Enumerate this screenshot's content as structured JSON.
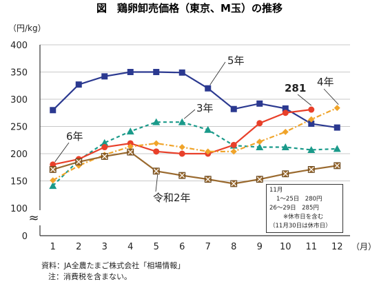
{
  "chart_data": {
    "type": "line",
    "title": "図　鶏卵卸売価格（東京、M玉）の推移",
    "ylabel": "（円/kg）",
    "xlabel": "（月）",
    "categories": [
      "1",
      "2",
      "3",
      "4",
      "5",
      "6",
      "7",
      "8",
      "9",
      "10",
      "11",
      "12"
    ],
    "ylim": [
      0,
      400
    ],
    "y_ticks": [
      "0",
      "100",
      "150",
      "200",
      "250",
      "300",
      "350",
      "400"
    ],
    "axis_break": "≈",
    "grid": true,
    "series": [
      {
        "name": "5年",
        "color": "#2b3990",
        "dash": "",
        "marker": "square",
        "values": [
          280,
          327,
          342,
          350,
          350,
          349,
          320,
          282,
          292,
          283,
          255,
          248
        ]
      },
      {
        "name": "3年",
        "color": "#1a9a8a",
        "dash": "5,4",
        "marker": "triangle",
        "values": [
          141,
          188,
          220,
          241,
          258,
          258,
          244,
          215,
          212,
          212,
          207,
          209
        ]
      },
      {
        "name": "6年",
        "color": "#e8402a",
        "dash": "",
        "marker": "circle",
        "values": [
          180,
          190,
          212,
          219,
          204,
          200,
          200,
          216,
          256,
          275,
          281,
          null
        ]
      },
      {
        "name": "4年",
        "color": "#f0a42a",
        "dash": "7,3,2,3",
        "marker": "diamond",
        "values": [
          151,
          178,
          198,
          213,
          219,
          212,
          204,
          204,
          222,
          240,
          263,
          284
        ]
      },
      {
        "name": "令和2年",
        "color": "#9a6a2f",
        "dash": "",
        "marker": "xsquare",
        "values": [
          171,
          185,
          195,
          203,
          168,
          160,
          153,
          145,
          153,
          163,
          171,
          178
        ]
      }
    ],
    "annotations": {
      "last_value_label": "281"
    },
    "note_box": [
      "11月",
      "1～25日　280円",
      "26～29日　285円",
      "※休市日を含む",
      "（11月30日は休市日）"
    ],
    "source": [
      "資料：JA全農たまご株式会社「相場情報」",
      "注：消費税を含まない。"
    ]
  }
}
